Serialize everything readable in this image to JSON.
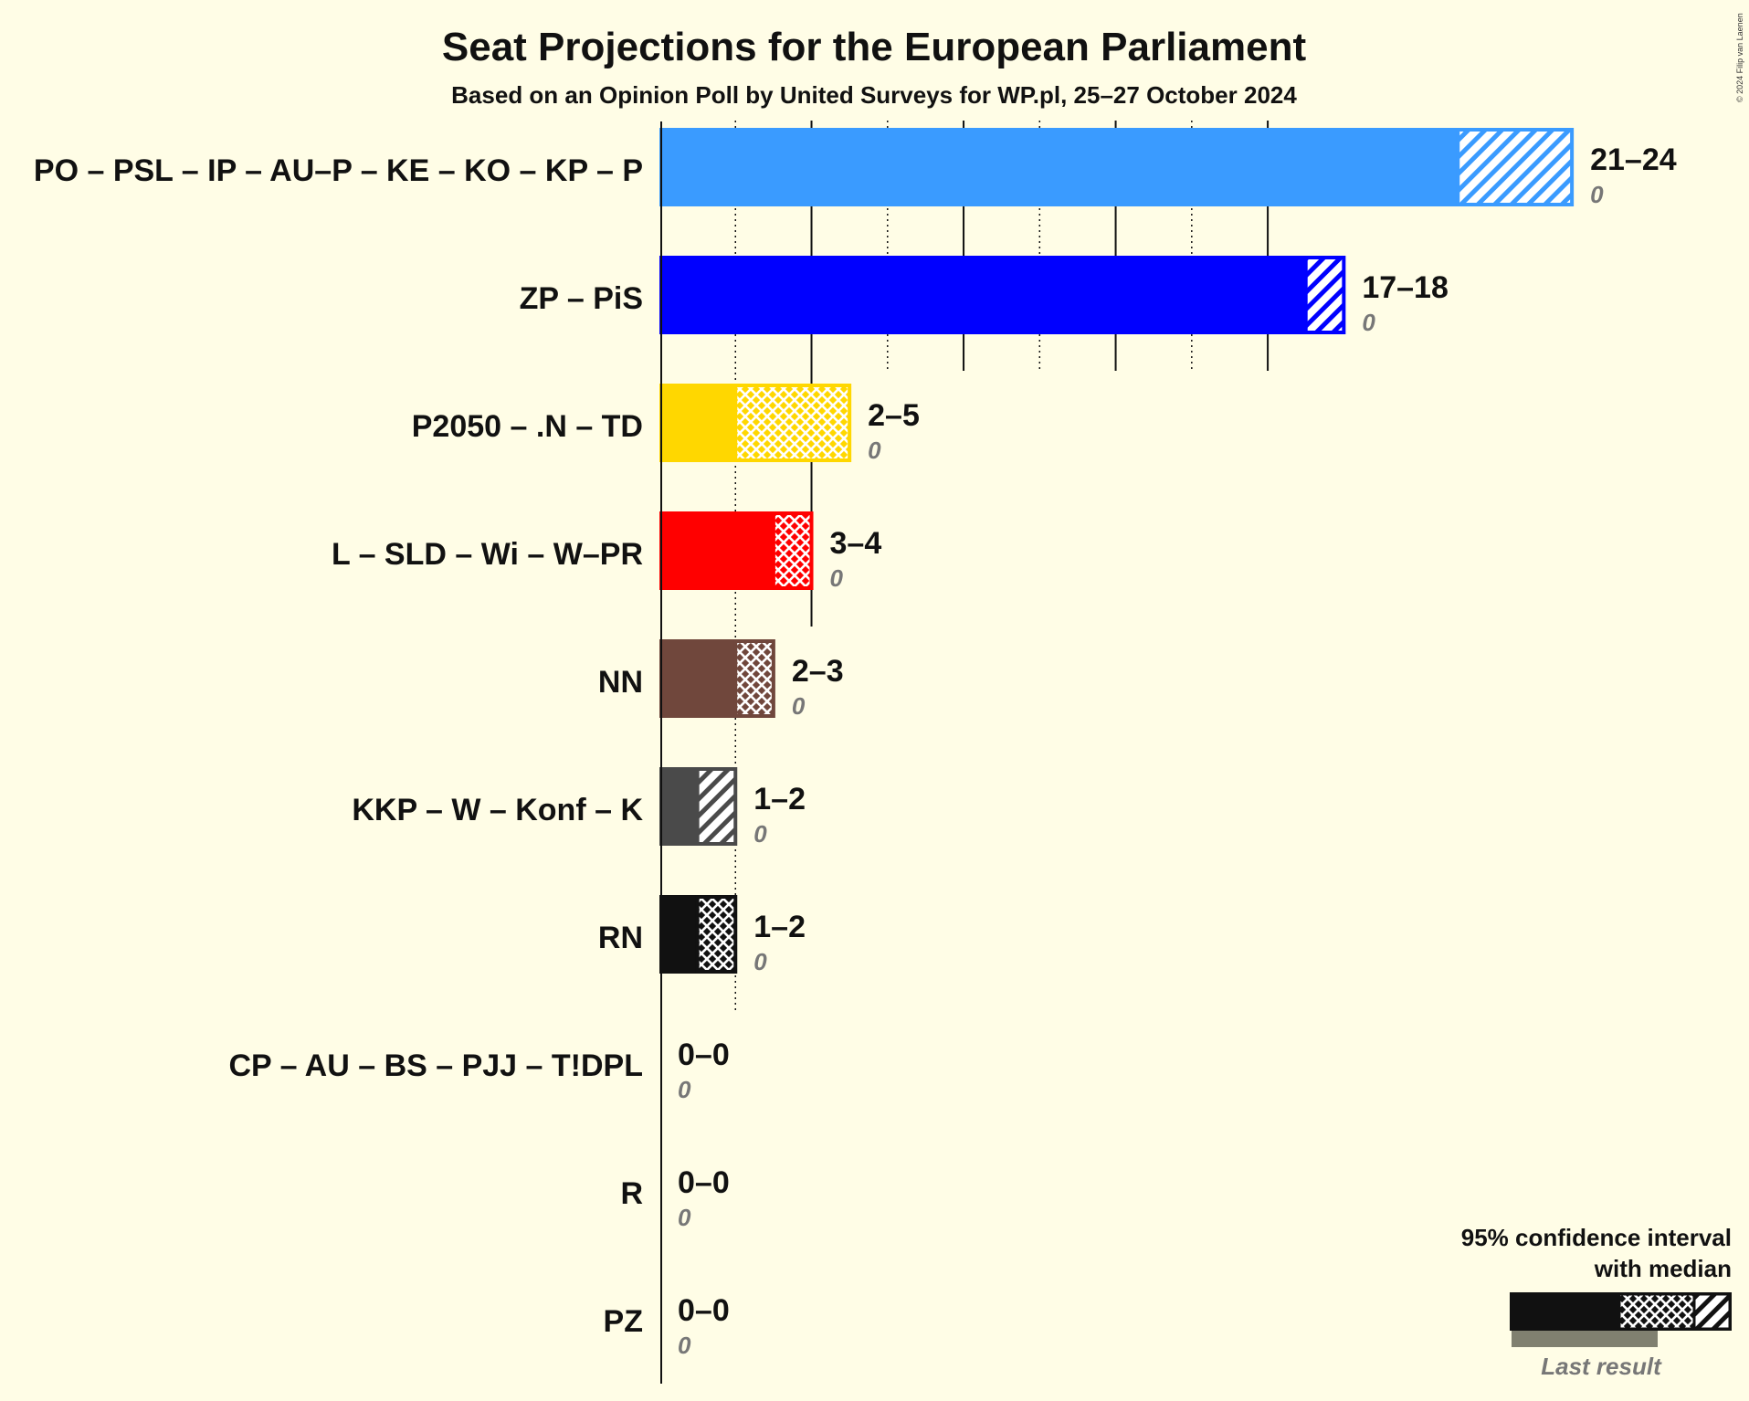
{
  "chart_data": {
    "type": "bar",
    "title": "Seat Projections for the European Parliament",
    "subtitle": "Based on an Opinion Poll by United Surveys for WP.pl, 25–27 October 2024",
    "xlim": [
      0,
      24
    ],
    "series": [
      {
        "party": "PO – PSL – IP – AU–P – KE – KO – KP – P",
        "low": 21,
        "median": 21,
        "high": 24,
        "range_label": "21–24",
        "last_result": 0,
        "last_label": "0",
        "color": "#3a9bff",
        "pattern": "diag"
      },
      {
        "party": "ZP – PiS",
        "low": 17,
        "median": 17,
        "high": 18,
        "range_label": "17–18",
        "last_result": 0,
        "last_label": "0",
        "color": "#0000ff",
        "pattern": "diag"
      },
      {
        "party": "P2050 – .N – TD",
        "low": 2,
        "median": 2,
        "high": 5,
        "range_label": "2–5",
        "last_result": 0,
        "last_label": "0",
        "color": "#ffd700",
        "pattern": "cross"
      },
      {
        "party": "L – SLD – Wi – W–PR",
        "low": 3,
        "median": 3,
        "high": 4,
        "range_label": "3–4",
        "last_result": 0,
        "last_label": "0",
        "color": "#ff0000",
        "pattern": "cross"
      },
      {
        "party": "NN",
        "low": 2,
        "median": 2,
        "high": 3,
        "range_label": "2–3",
        "last_result": 0,
        "last_label": "0",
        "color": "#70473c",
        "pattern": "cross"
      },
      {
        "party": "KKP – W – Konf – K",
        "low": 1,
        "median": 1,
        "high": 2,
        "range_label": "1–2",
        "last_result": 0,
        "last_label": "0",
        "color": "#4a4a4a",
        "pattern": "diag"
      },
      {
        "party": "RN",
        "low": 1,
        "median": 1,
        "high": 2,
        "range_label": "1–2",
        "last_result": 0,
        "last_label": "0",
        "color": "#111111",
        "pattern": "cross"
      },
      {
        "party": "CP – AU – BS – PJJ – T!DPL",
        "low": 0,
        "median": 0,
        "high": 0,
        "range_label": "0–0",
        "last_result": 0,
        "last_label": "0",
        "color": "#999999",
        "pattern": "none"
      },
      {
        "party": "R",
        "low": 0,
        "median": 0,
        "high": 0,
        "range_label": "0–0",
        "last_result": 0,
        "last_label": "0",
        "color": "#999999",
        "pattern": "none"
      },
      {
        "party": "PZ",
        "low": 0,
        "median": 0,
        "high": 0,
        "range_label": "0–0",
        "last_result": 0,
        "last_label": "0",
        "color": "#999999",
        "pattern": "none"
      }
    ],
    "legend": {
      "line1": "95% confidence interval",
      "line2": "with median",
      "last": "Last result",
      "placement": "bottom-right"
    }
  },
  "copyright": "© 2024 Filip van Laenen"
}
